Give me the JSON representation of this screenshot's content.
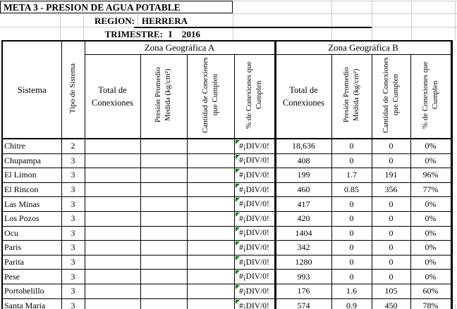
{
  "top": {
    "title": "META 3 - PRESION DE AGUA POTABLE",
    "region_label": "REGION:",
    "region_value": "HERRERA",
    "trimestre_label": "TRIMESTRE:",
    "trimestre_period": "I",
    "trimestre_year": "2016"
  },
  "table": {
    "zone_a_label": "Zona Geográfica A",
    "zone_b_label": "Zona Geográfica B",
    "col_sistema": "Sistema",
    "col_tipo": "Tipo de Sistema",
    "col_total": "Total de Conexiones",
    "col_presion": "Presión Promedio Medida (kg/cm²)",
    "col_cantidad": "Cantidad de Conexiones que Cumplen",
    "col_pct": "% de Conexiones que Cumplen",
    "error_value": "#¡DIV/0!",
    "rows": [
      {
        "sistema": "Chitre",
        "tipo": "2",
        "a_total": "",
        "a_presion": "",
        "a_cantidad": "",
        "a_pct": "#¡DIV/0!",
        "b_total": "18,636",
        "b_presion": "0",
        "b_cantidad": "0",
        "b_pct": "0%"
      },
      {
        "sistema": "Chupampa",
        "tipo": "3",
        "a_total": "",
        "a_presion": "",
        "a_cantidad": "",
        "a_pct": "#¡DIV/0!",
        "b_total": "408",
        "b_presion": "0",
        "b_cantidad": "0",
        "b_pct": "0%"
      },
      {
        "sistema": "El Limon",
        "tipo": "3",
        "a_total": "",
        "a_presion": "",
        "a_cantidad": "",
        "a_pct": "#¡DIV/0!",
        "b_total": "199",
        "b_presion": "1.7",
        "b_cantidad": "191",
        "b_pct": "96%"
      },
      {
        "sistema": "El Rincon",
        "tipo": "3",
        "a_total": "",
        "a_presion": "",
        "a_cantidad": "",
        "a_pct": "#¡DIV/0!",
        "b_total": "460",
        "b_presion": "0.85",
        "b_cantidad": "356",
        "b_pct": "77%"
      },
      {
        "sistema": "Las Minas",
        "tipo": "3",
        "a_total": "",
        "a_presion": "",
        "a_cantidad": "",
        "a_pct": "#¡DIV/0!",
        "b_total": "417",
        "b_presion": "0",
        "b_cantidad": "0",
        "b_pct": "0%"
      },
      {
        "sistema": "Los Pozos",
        "tipo": "3",
        "a_total": "",
        "a_presion": "",
        "a_cantidad": "",
        "a_pct": "#¡DIV/0!",
        "b_total": "420",
        "b_presion": "0",
        "b_cantidad": "0",
        "b_pct": "0%"
      },
      {
        "sistema": "Ocu",
        "tipo": "3",
        "a_total": "",
        "a_presion": "",
        "a_cantidad": "",
        "a_pct": "#¡DIV/0!",
        "b_total": "1404",
        "b_presion": "0",
        "b_cantidad": "0",
        "b_pct": "0%"
      },
      {
        "sistema": "Paris",
        "tipo": "3",
        "a_total": "",
        "a_presion": "",
        "a_cantidad": "",
        "a_pct": "#¡DIV/0!",
        "b_total": "342",
        "b_presion": "0",
        "b_cantidad": "0",
        "b_pct": "0%"
      },
      {
        "sistema": "Parita",
        "tipo": "3",
        "a_total": "",
        "a_presion": "",
        "a_cantidad": "",
        "a_pct": "#¡DIV/0!",
        "b_total": "1280",
        "b_presion": "0",
        "b_cantidad": "0",
        "b_pct": "0%"
      },
      {
        "sistema": "Pese",
        "tipo": "3",
        "a_total": "",
        "a_presion": "",
        "a_cantidad": "",
        "a_pct": "#¡DIV/0!",
        "b_total": "993",
        "b_presion": "0",
        "b_cantidad": "0",
        "b_pct": "0%"
      },
      {
        "sistema": "Portobelillo",
        "tipo": "3",
        "a_total": "",
        "a_presion": "",
        "a_cantidad": "",
        "a_pct": "#¡DIV/0!",
        "b_total": "176",
        "b_presion": "1.6",
        "b_cantidad": "105",
        "b_pct": "60%"
      },
      {
        "sistema": "Santa Maria",
        "tipo": "3",
        "a_total": "",
        "a_presion": "",
        "a_cantidad": "",
        "a_pct": "#¡DIV/0!",
        "b_total": "574",
        "b_presion": "0.9",
        "b_cantidad": "450",
        "b_pct": "78%"
      }
    ]
  },
  "colors": {
    "error_indicator_green": "#007a00",
    "gridline_light": "#c9c9c9",
    "border_black": "#000000"
  }
}
